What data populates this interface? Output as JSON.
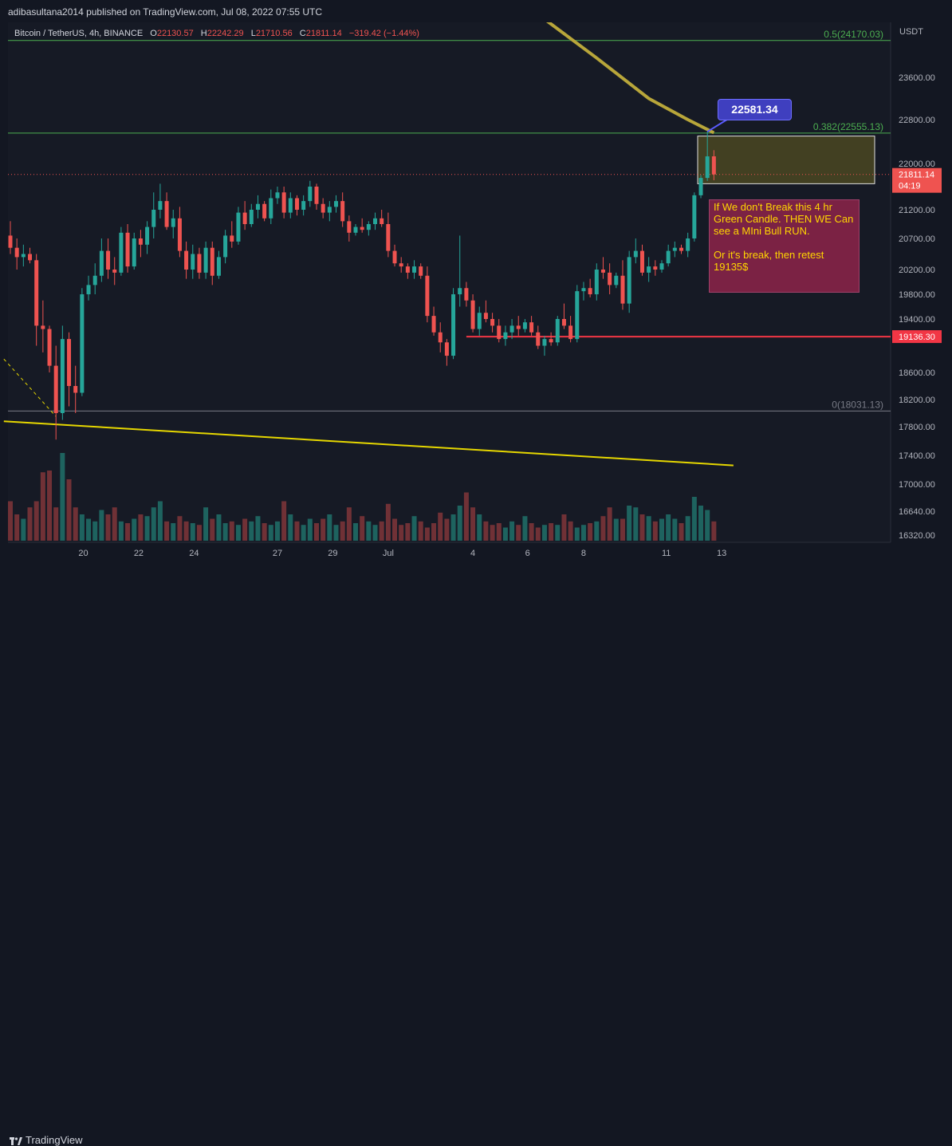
{
  "header": {
    "publisher": "adibasultana2014 published on TradingView.com, Jul 08, 2022 07:55 UTC"
  },
  "legend": {
    "symbol": "Bitcoin / TetherUS, 4h, BINANCE",
    "open_label": "O",
    "open": "22130.57",
    "high_label": "H",
    "high": "22242.29",
    "low_label": "L",
    "low": "21710.56",
    "close_label": "C",
    "close": "21811.14",
    "change": "−319.42 (−1.44%)"
  },
  "axis": {
    "unit": "USDT",
    "y_ticks": [
      "23600.00",
      "22800.00",
      "22000.00",
      "21200.00",
      "20700.00",
      "20200.00",
      "19800.00",
      "19400.00",
      "18600.00",
      "18200.00",
      "17800.00",
      "17400.00",
      "17000.00",
      "16640.00",
      "16320.00"
    ],
    "x_ticks": [
      "20",
      "22",
      "24",
      "27",
      "29",
      "Jul",
      "4",
      "6",
      "8",
      "11",
      "13"
    ]
  },
  "price_labels": {
    "last_price": "21811.14",
    "countdown": "04:19",
    "support": "19136.30"
  },
  "fib": {
    "level_05": "0.5(24170.03)",
    "level_0382": "0.382(22555.13)",
    "level_0": "0(18031.13)"
  },
  "annotations": {
    "callout_price": "22581.34",
    "note": "If We don't Break this 4 hr Green Candle. THEN WE Can see a MIni Bull RUN.\n\nOr it's break, then retest 19135$"
  },
  "footer": {
    "brand": "TradingView"
  },
  "colors": {
    "up": "#26a69a",
    "down": "#ef5350",
    "fib": "#4caf50",
    "support": "#f23645",
    "ma": "#b8a63a",
    "trend": "#e6d700",
    "note_bg": "#7b2244",
    "callout_bg": "#3f3fbf"
  },
  "chart_data": {
    "type": "candlestick",
    "symbol": "Bitcoin / TetherUS",
    "interval": "4h",
    "exchange": "BINANCE",
    "x_range": [
      0,
      111
    ],
    "x_ticks": [
      {
        "label": "20",
        "x": 11.2
      },
      {
        "label": "22",
        "x": 19.7
      },
      {
        "label": "24",
        "x": 28.2
      },
      {
        "label": "27",
        "x": 41
      },
      {
        "label": "29",
        "x": 49.5
      },
      {
        "label": "Jul",
        "x": 58
      },
      {
        "label": "4",
        "x": 71
      },
      {
        "label": "6",
        "x": 79.4
      },
      {
        "label": "8",
        "x": 88
      },
      {
        "label": "11",
        "x": 100.7
      },
      {
        "label": "13",
        "x": 109.2
      }
    ],
    "candles": [
      {
        "x": 0,
        "o": 20750,
        "h": 21000,
        "l": 20450,
        "c": 20550
      },
      {
        "x": 1,
        "o": 20550,
        "h": 20700,
        "l": 20200,
        "c": 20400
      },
      {
        "x": 2,
        "o": 20400,
        "h": 20600,
        "l": 20250,
        "c": 20450
      },
      {
        "x": 3,
        "o": 20450,
        "h": 20550,
        "l": 20300,
        "c": 20350
      },
      {
        "x": 4,
        "o": 20350,
        "h": 20450,
        "l": 19000,
        "c": 19300
      },
      {
        "x": 5,
        "o": 19300,
        "h": 19700,
        "l": 18900,
        "c": 19250
      },
      {
        "x": 6,
        "o": 19250,
        "h": 19300,
        "l": 18600,
        "c": 18700
      },
      {
        "x": 7,
        "o": 18700,
        "h": 19000,
        "l": 17620,
        "c": 18000
      },
      {
        "x": 8,
        "o": 18000,
        "h": 19300,
        "l": 17900,
        "c": 19100
      },
      {
        "x": 9,
        "o": 19100,
        "h": 19200,
        "l": 18100,
        "c": 18400
      },
      {
        "x": 10,
        "o": 18400,
        "h": 18700,
        "l": 18000,
        "c": 18300
      },
      {
        "x": 11,
        "o": 18300,
        "h": 19900,
        "l": 18250,
        "c": 19800
      },
      {
        "x": 12,
        "o": 19800,
        "h": 20100,
        "l": 19700,
        "c": 19950
      },
      {
        "x": 13,
        "o": 19950,
        "h": 20300,
        "l": 19800,
        "c": 20100
      },
      {
        "x": 14,
        "o": 20100,
        "h": 20700,
        "l": 20000,
        "c": 20500
      },
      {
        "x": 15,
        "o": 20500,
        "h": 20700,
        "l": 20050,
        "c": 20200
      },
      {
        "x": 16,
        "o": 20200,
        "h": 20400,
        "l": 19950,
        "c": 20150
      },
      {
        "x": 17,
        "o": 20150,
        "h": 20900,
        "l": 20100,
        "c": 20800
      },
      {
        "x": 18,
        "o": 20800,
        "h": 20950,
        "l": 20150,
        "c": 20250
      },
      {
        "x": 19,
        "o": 20250,
        "h": 20800,
        "l": 20200,
        "c": 20700
      },
      {
        "x": 20,
        "o": 20700,
        "h": 20850,
        "l": 20400,
        "c": 20600
      },
      {
        "x": 21,
        "o": 20600,
        "h": 21000,
        "l": 20450,
        "c": 20900
      },
      {
        "x": 22,
        "o": 20900,
        "h": 21500,
        "l": 20700,
        "c": 21200
      },
      {
        "x": 23,
        "o": 21200,
        "h": 21650,
        "l": 21050,
        "c": 21350
      },
      {
        "x": 24,
        "o": 21350,
        "h": 21500,
        "l": 20850,
        "c": 20900
      },
      {
        "x": 25,
        "o": 20900,
        "h": 21200,
        "l": 20700,
        "c": 21050
      },
      {
        "x": 26,
        "o": 21050,
        "h": 21250,
        "l": 20400,
        "c": 20500
      },
      {
        "x": 27,
        "o": 20500,
        "h": 20650,
        "l": 20050,
        "c": 20200
      },
      {
        "x": 28,
        "o": 20200,
        "h": 20600,
        "l": 20050,
        "c": 20450
      },
      {
        "x": 29,
        "o": 20450,
        "h": 20550,
        "l": 20050,
        "c": 20150
      },
      {
        "x": 30,
        "o": 20150,
        "h": 20650,
        "l": 20050,
        "c": 20550
      },
      {
        "x": 31,
        "o": 20550,
        "h": 20650,
        "l": 19950,
        "c": 20100
      },
      {
        "x": 32,
        "o": 20100,
        "h": 20500,
        "l": 20050,
        "c": 20400
      },
      {
        "x": 33,
        "o": 20400,
        "h": 20850,
        "l": 20300,
        "c": 20750
      },
      {
        "x": 34,
        "o": 20750,
        "h": 21000,
        "l": 20550,
        "c": 20650
      },
      {
        "x": 35,
        "o": 20650,
        "h": 21250,
        "l": 20600,
        "c": 21150
      },
      {
        "x": 36,
        "o": 21150,
        "h": 21350,
        "l": 20850,
        "c": 20950
      },
      {
        "x": 37,
        "o": 20950,
        "h": 21300,
        "l": 20900,
        "c": 21200
      },
      {
        "x": 38,
        "o": 21200,
        "h": 21450,
        "l": 21050,
        "c": 21300
      },
      {
        "x": 39,
        "o": 21300,
        "h": 21350,
        "l": 21000,
        "c": 21050
      },
      {
        "x": 40,
        "o": 21050,
        "h": 21550,
        "l": 20950,
        "c": 21400
      },
      {
        "x": 41,
        "o": 21400,
        "h": 21600,
        "l": 21300,
        "c": 21500
      },
      {
        "x": 42,
        "o": 21500,
        "h": 21600,
        "l": 21050,
        "c": 21150
      },
      {
        "x": 43,
        "o": 21150,
        "h": 21500,
        "l": 21050,
        "c": 21400
      },
      {
        "x": 44,
        "o": 21400,
        "h": 21450,
        "l": 21100,
        "c": 21200
      },
      {
        "x": 45,
        "o": 21200,
        "h": 21450,
        "l": 21100,
        "c": 21350
      },
      {
        "x": 46,
        "o": 21350,
        "h": 21700,
        "l": 21250,
        "c": 21600
      },
      {
        "x": 47,
        "o": 21600,
        "h": 21650,
        "l": 21200,
        "c": 21300
      },
      {
        "x": 48,
        "o": 21300,
        "h": 21400,
        "l": 21050,
        "c": 21150
      },
      {
        "x": 49,
        "o": 21150,
        "h": 21350,
        "l": 21000,
        "c": 21250
      },
      {
        "x": 50,
        "o": 21250,
        "h": 21450,
        "l": 21150,
        "c": 21350
      },
      {
        "x": 51,
        "o": 21350,
        "h": 21500,
        "l": 20900,
        "c": 21000
      },
      {
        "x": 52,
        "o": 21000,
        "h": 21100,
        "l": 20650,
        "c": 20800
      },
      {
        "x": 53,
        "o": 20800,
        "h": 20950,
        "l": 20750,
        "c": 20900
      },
      {
        "x": 54,
        "o": 20900,
        "h": 21050,
        "l": 20800,
        "c": 20850
      },
      {
        "x": 55,
        "o": 20850,
        "h": 21000,
        "l": 20750,
        "c": 20950
      },
      {
        "x": 56,
        "o": 20950,
        "h": 21150,
        "l": 20850,
        "c": 21050
      },
      {
        "x": 57,
        "o": 21050,
        "h": 21200,
        "l": 20900,
        "c": 20950
      },
      {
        "x": 58,
        "o": 20950,
        "h": 21150,
        "l": 20400,
        "c": 20500
      },
      {
        "x": 59,
        "o": 20500,
        "h": 20600,
        "l": 20250,
        "c": 20300
      },
      {
        "x": 60,
        "o": 20300,
        "h": 20400,
        "l": 20150,
        "c": 20250
      },
      {
        "x": 61,
        "o": 20250,
        "h": 20300,
        "l": 20050,
        "c": 20150
      },
      {
        "x": 62,
        "o": 20150,
        "h": 20350,
        "l": 20050,
        "c": 20250
      },
      {
        "x": 63,
        "o": 20250,
        "h": 20300,
        "l": 20050,
        "c": 20100
      },
      {
        "x": 64,
        "o": 20100,
        "h": 20250,
        "l": 19350,
        "c": 19450
      },
      {
        "x": 65,
        "o": 19450,
        "h": 19600,
        "l": 19150,
        "c": 19200
      },
      {
        "x": 66,
        "o": 19200,
        "h": 19350,
        "l": 18900,
        "c": 19050
      },
      {
        "x": 67,
        "o": 19050,
        "h": 19100,
        "l": 18700,
        "c": 18850
      },
      {
        "x": 68,
        "o": 18850,
        "h": 19900,
        "l": 18800,
        "c": 19800
      },
      {
        "x": 69,
        "o": 19800,
        "h": 20750,
        "l": 19600,
        "c": 19900
      },
      {
        "x": 70,
        "o": 19900,
        "h": 20000,
        "l": 19600,
        "c": 19700
      },
      {
        "x": 71,
        "o": 19700,
        "h": 19800,
        "l": 19200,
        "c": 19250
      },
      {
        "x": 72,
        "o": 19250,
        "h": 19600,
        "l": 19150,
        "c": 19500
      },
      {
        "x": 73,
        "o": 19500,
        "h": 19700,
        "l": 19350,
        "c": 19400
      },
      {
        "x": 74,
        "o": 19400,
        "h": 19500,
        "l": 19200,
        "c": 19300
      },
      {
        "x": 75,
        "o": 19300,
        "h": 19400,
        "l": 19050,
        "c": 19100
      },
      {
        "x": 76,
        "o": 19100,
        "h": 19300,
        "l": 19000,
        "c": 19200
      },
      {
        "x": 77,
        "o": 19200,
        "h": 19400,
        "l": 19100,
        "c": 19300
      },
      {
        "x": 78,
        "o": 19300,
        "h": 19450,
        "l": 19150,
        "c": 19250
      },
      {
        "x": 79,
        "o": 19250,
        "h": 19400,
        "l": 19200,
        "c": 19350
      },
      {
        "x": 80,
        "o": 19350,
        "h": 19450,
        "l": 19150,
        "c": 19200
      },
      {
        "x": 81,
        "o": 19200,
        "h": 19300,
        "l": 18950,
        "c": 19000
      },
      {
        "x": 82,
        "o": 19000,
        "h": 19150,
        "l": 18850,
        "c": 19100
      },
      {
        "x": 83,
        "o": 19100,
        "h": 19200,
        "l": 19000,
        "c": 19050
      },
      {
        "x": 84,
        "o": 19050,
        "h": 19450,
        "l": 19000,
        "c": 19400
      },
      {
        "x": 85,
        "o": 19400,
        "h": 19650,
        "l": 19250,
        "c": 19300
      },
      {
        "x": 86,
        "o": 19300,
        "h": 19450,
        "l": 19050,
        "c": 19100
      },
      {
        "x": 87,
        "o": 19100,
        "h": 19950,
        "l": 19050,
        "c": 19850
      },
      {
        "x": 88,
        "o": 19850,
        "h": 20000,
        "l": 19700,
        "c": 19900
      },
      {
        "x": 89,
        "o": 19900,
        "h": 20050,
        "l": 19750,
        "c": 19800
      },
      {
        "x": 90,
        "o": 19800,
        "h": 20300,
        "l": 19700,
        "c": 20200
      },
      {
        "x": 91,
        "o": 20200,
        "h": 20400,
        "l": 20050,
        "c": 20150
      },
      {
        "x": 92,
        "o": 20150,
        "h": 20300,
        "l": 19800,
        "c": 19950
      },
      {
        "x": 93,
        "o": 19950,
        "h": 20150,
        "l": 19900,
        "c": 20100
      },
      {
        "x": 94,
        "o": 20100,
        "h": 20350,
        "l": 19550,
        "c": 19650
      },
      {
        "x": 95,
        "o": 19650,
        "h": 20500,
        "l": 19500,
        "c": 20400
      },
      {
        "x": 96,
        "o": 20400,
        "h": 20700,
        "l": 20300,
        "c": 20500
      },
      {
        "x": 97,
        "o": 20500,
        "h": 20600,
        "l": 20100,
        "c": 20150
      },
      {
        "x": 98,
        "o": 20150,
        "h": 20400,
        "l": 20000,
        "c": 20250
      },
      {
        "x": 99,
        "o": 20250,
        "h": 20350,
        "l": 20100,
        "c": 20200
      },
      {
        "x": 100,
        "o": 20200,
        "h": 20350,
        "l": 20150,
        "c": 20300
      },
      {
        "x": 101,
        "o": 20300,
        "h": 20600,
        "l": 20250,
        "c": 20500
      },
      {
        "x": 102,
        "o": 20500,
        "h": 20650,
        "l": 20400,
        "c": 20550
      },
      {
        "x": 103,
        "o": 20550,
        "h": 20600,
        "l": 20450,
        "c": 20500
      },
      {
        "x": 104,
        "o": 20500,
        "h": 20800,
        "l": 20400,
        "c": 20700
      },
      {
        "x": 105,
        "o": 20700,
        "h": 21500,
        "l": 20650,
        "c": 21450
      },
      {
        "x": 106,
        "o": 21450,
        "h": 21800,
        "l": 21400,
        "c": 21750
      },
      {
        "x": 107,
        "o": 21750,
        "h": 22580,
        "l": 21700,
        "c": 22130
      },
      {
        "x": 108,
        "o": 22130.57,
        "h": 22242.29,
        "l": 21710.56,
        "c": 21811.14
      }
    ],
    "volume_scale": [
      0,
      100
    ],
    "volume": [
      45,
      30,
      25,
      38,
      45,
      78,
      80,
      38,
      100,
      70,
      38,
      30,
      25,
      22,
      35,
      30,
      38,
      22,
      20,
      25,
      30,
      28,
      38,
      45,
      22,
      20,
      28,
      22,
      20,
      18,
      38,
      25,
      30,
      20,
      22,
      18,
      25,
      22,
      28,
      20,
      18,
      22,
      45,
      30,
      22,
      18,
      25,
      20,
      25,
      30,
      18,
      22,
      38,
      20,
      28,
      22,
      18,
      22,
      42,
      25,
      18,
      20,
      28,
      22,
      15,
      20,
      32,
      25,
      30,
      40,
      55,
      38,
      30,
      22,
      18,
      20,
      15,
      22,
      18,
      28,
      20,
      15,
      18,
      20,
      18,
      30,
      22,
      15,
      18,
      20,
      22,
      28,
      38,
      25,
      25,
      40,
      38,
      30,
      28,
      22,
      25,
      30,
      25,
      20,
      28,
      50,
      40,
      35,
      22
    ],
    "price_axis": {
      "min": 16100,
      "max": 24500,
      "ticks": [
        23600,
        22800,
        22000,
        21200,
        20700,
        20200,
        19800,
        19400,
        18600,
        18200,
        17800,
        17400,
        17000,
        16640,
        16320
      ]
    },
    "fibonacci": [
      {
        "ratio": "0.5",
        "price": 24170.03
      },
      {
        "ratio": "0.382",
        "price": 22555.13
      },
      {
        "ratio": "0",
        "price": 18031.13
      }
    ],
    "support_line": {
      "price": 19136.3,
      "x_start": 70
    },
    "resistance_box": {
      "x_start": 106,
      "x_end": 112,
      "price_top": 22500,
      "price_bottom": 21650
    },
    "last_price_line": 21811.14,
    "moving_average": [
      {
        "x": 75,
        "y": 25200
      },
      {
        "x": 82,
        "y": 24600
      },
      {
        "x": 90,
        "y": 23900
      },
      {
        "x": 98,
        "y": 23200
      },
      {
        "x": 104,
        "y": 22800
      },
      {
        "x": 108,
        "y": 22560
      }
    ],
    "trendline": [
      {
        "x": -1,
        "y": 17880
      },
      {
        "x": 111,
        "y": 17260
      }
    ],
    "dashed_line": [
      {
        "x": -1,
        "y": 18800
      },
      {
        "x": 7,
        "y": 17950
      }
    ],
    "grid": false
  }
}
